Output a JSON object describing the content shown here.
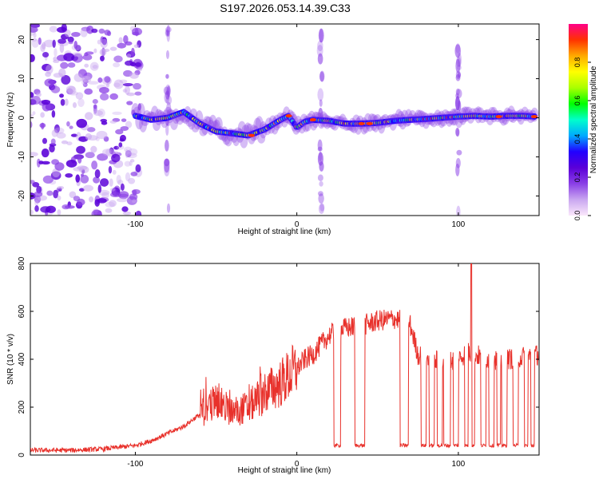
{
  "title": "S197.2026.053.14.39.C33",
  "colors": {
    "snr_line": "#e8312b",
    "colorbar_stops": [
      "#fbe8fb",
      "#c9a6f0",
      "#8a3fe6",
      "#5a00d8",
      "#2200ff",
      "#00aaff",
      "#00ffcc",
      "#00ff00",
      "#aaff00",
      "#ffff00",
      "#ffaa00",
      "#ff3300",
      "#ff0088"
    ]
  },
  "chart_data": [
    {
      "id": "spectrogram",
      "type": "heatmap",
      "xlabel": "Height of straight line (km)",
      "ylabel": "Frequency (Hz)",
      "xlim": [
        -165,
        150
      ],
      "ylim": [
        -25,
        24
      ],
      "xticks": [
        -100,
        0,
        100
      ],
      "xtick_labels": [
        "-100",
        "0",
        "100"
      ],
      "yticks": [
        -20,
        -10,
        0,
        10,
        20
      ],
      "ytick_labels": [
        "-20",
        "-10",
        "0",
        "10",
        "20"
      ],
      "colorbar": {
        "label": "Normalized spectral amplitude",
        "range": [
          0,
          1
        ],
        "ticks": [
          0.0,
          0.2,
          0.4,
          0.6,
          0.8
        ],
        "tick_labels": [
          "0.0",
          "0.2",
          "0.4",
          "0.6",
          "0.8"
        ]
      },
      "ridge": {
        "description": "dominant frequency track",
        "x": [
          -100,
          -90,
          -80,
          -70,
          -60,
          -50,
          -40,
          -30,
          -20,
          -10,
          -5,
          0,
          5,
          10,
          20,
          30,
          40,
          50,
          60,
          70,
          80,
          90,
          100,
          110,
          120,
          130,
          140,
          148
        ],
        "y": [
          0.5,
          -0.5,
          0,
          1.5,
          -1.5,
          -3.5,
          -4,
          -4.5,
          -3,
          -0.5,
          0.5,
          -2.5,
          -1,
          -0.5,
          -0.8,
          -1.5,
          -1.5,
          -1.3,
          -0.8,
          -0.5,
          -0.3,
          0,
          0.3,
          0.5,
          0.3,
          0.5,
          0.5,
          0.3
        ]
      },
      "noise_region_x": [
        -165,
        -97
      ],
      "vertical_streaks_x": [
        -80,
        15,
        100
      ]
    },
    {
      "id": "snr",
      "type": "line",
      "xlabel": "Height of straight line (km)",
      "ylabel": "SNR (10 * v/v)",
      "xlim": [
        -165,
        150
      ],
      "ylim": [
        0,
        800
      ],
      "xticks": [
        -100,
        0,
        100
      ],
      "xtick_labels": [
        "-100",
        "0",
        "100"
      ],
      "yticks": [
        0,
        200,
        400,
        600,
        800
      ],
      "ytick_labels": [
        "0",
        "200",
        "400",
        "600",
        "800"
      ],
      "series": [
        {
          "name": "SNR",
          "x": [
            -165,
            -140,
            -120,
            -100,
            -90,
            -80,
            -70,
            -60,
            -50,
            -45,
            -40,
            -30,
            -20,
            -10,
            0,
            5,
            10,
            15,
            20,
            25,
            30,
            40,
            50,
            60,
            65,
            70,
            75,
            80,
            90,
            100,
            105,
            110,
            120,
            130,
            140,
            150
          ],
          "y": [
            20,
            20,
            25,
            40,
            60,
            90,
            120,
            170,
            230,
            200,
            180,
            200,
            260,
            300,
            360,
            400,
            420,
            460,
            500,
            520,
            530,
            540,
            560,
            570,
            560,
            550,
            420,
            400,
            390,
            400,
            430,
            420,
            400,
            400,
            410,
            420
          ]
        }
      ],
      "dropouts": {
        "description": "intervals where SNR drops to ~40",
        "x": [
          [
            23,
            27
          ],
          [
            36,
            42
          ],
          [
            64,
            69
          ],
          [
            77,
            80
          ],
          [
            82,
            85
          ],
          [
            87,
            90
          ],
          [
            91,
            95
          ],
          [
            97,
            100
          ],
          [
            104,
            106
          ],
          [
            108,
            110
          ],
          [
            114,
            117
          ],
          [
            119,
            122
          ],
          [
            124,
            126
          ],
          [
            127,
            130
          ],
          [
            134,
            137
          ],
          [
            141,
            143
          ],
          [
            145,
            147
          ]
        ]
      },
      "spike": {
        "x": 108,
        "y": 800
      }
    }
  ]
}
